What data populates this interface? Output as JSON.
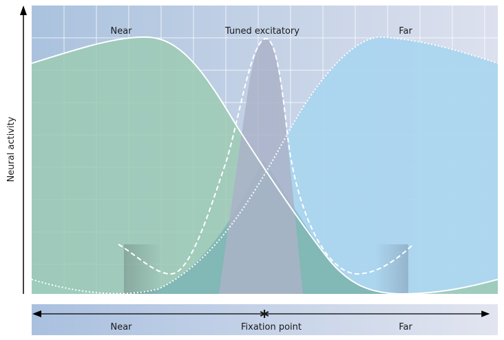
{
  "y_axis_label": "Neural activity",
  "curve_labels": {
    "near": "Near",
    "tuned_excitatory": "Tuned excitatory",
    "far": "Far"
  },
  "depth_axis": {
    "left_label": "Near",
    "center_label": "Fixation point",
    "right_label": "Far",
    "center_marker": "*"
  },
  "colors": {
    "near_fill": "#9ccab4",
    "far_fill": "#a9d5ef",
    "tuned_fill": "#aab3c8",
    "plot_bg_left": "#aac2de",
    "plot_bg_right": "#dde1ee",
    "grid": "#ffffff",
    "axis": "#000000"
  }
}
